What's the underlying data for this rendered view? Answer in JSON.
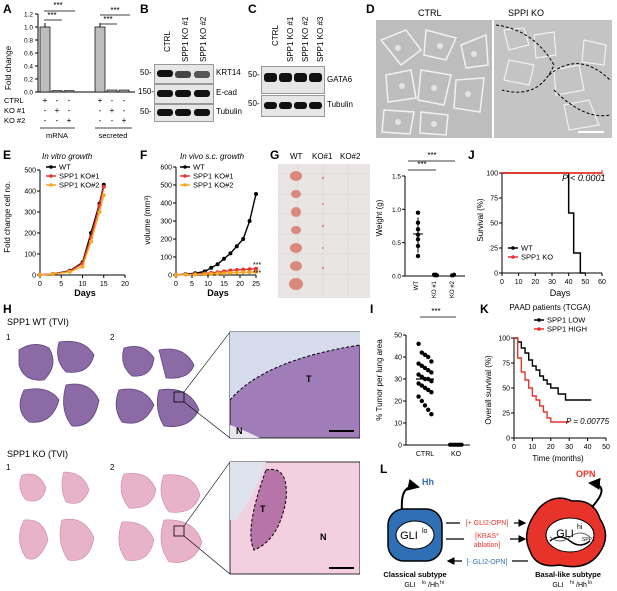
{
  "panels": {
    "A": "A",
    "B": "B",
    "C": "C",
    "D": "D",
    "E": "E",
    "F": "F",
    "G": "G",
    "J": "J",
    "H": "H",
    "I": "I",
    "K": "K",
    "L": "L"
  },
  "A": {
    "ylabel": "Fold change",
    "yticks": [
      "0.0",
      "0.2",
      "0.4",
      "0.6",
      "0.8",
      "1.0",
      "1.2"
    ],
    "rows": [
      "CTRL",
      "KO #1",
      "KO #2"
    ],
    "marks": [
      [
        "+",
        "-",
        "-",
        "+",
        "-",
        "-"
      ],
      [
        "-",
        "+",
        "-",
        "-",
        "+",
        "-"
      ],
      [
        "-",
        "-",
        "+",
        "-",
        "-",
        "+"
      ]
    ],
    "groups": [
      "mRNA",
      "secreted"
    ],
    "sig": "***",
    "bars": [
      1.0,
      0.02,
      0.02,
      1.0,
      0.03,
      0.03
    ]
  },
  "B": {
    "lanes": [
      "CTRL",
      "SPP1 KO #1",
      "SPP1 KO #2"
    ],
    "mw": [
      "50-",
      "150-",
      "50-"
    ],
    "proteins": [
      "KRT14",
      "E-cad",
      "Tubulin"
    ]
  },
  "C": {
    "lanes": [
      "CTRL",
      "SPP1 KO #1",
      "SPP1 KO #2",
      "SPP1 KO #3"
    ],
    "mw": [
      "50-",
      "50-"
    ],
    "proteins": [
      "GATA6",
      "Tubulin"
    ]
  },
  "D": {
    "left": "CTRL",
    "right": "SPPI KO"
  },
  "E": {
    "title": "In vitro growth",
    "ylabel": "Fold change cell no.",
    "xlabel": "Days",
    "legend": [
      "WT",
      "SPP1 KO#1",
      "SPP1 KO#2"
    ],
    "yticks": [
      "0",
      "100",
      "200",
      "300",
      "400",
      "500"
    ],
    "xticks": [
      "0",
      "5",
      "10",
      "15",
      "20"
    ]
  },
  "F": {
    "title": "In vivo s.c. growth",
    "ylabel": "volume (mm³)",
    "xlabel": "Days",
    "legend": [
      "WT",
      "SPP1 KO#1",
      "SPP1 KO#2"
    ],
    "yticks": [
      "0",
      "100",
      "200",
      "300",
      "400",
      "500",
      "600"
    ],
    "xticks": [
      "0",
      "5",
      "10",
      "15",
      "20",
      "25"
    ],
    "sig": "***"
  },
  "G": {
    "cols": [
      "WT",
      "KO#1",
      "KO#2"
    ],
    "ylabel": "Weight (g)",
    "yticks": [
      "0.0",
      "0.5",
      "1.0",
      "1.5"
    ],
    "xticks": [
      "WT",
      "KO #1",
      "KO #2"
    ],
    "sig": "***"
  },
  "J": {
    "ylabel": "Survival (%)",
    "xlabel": "Days",
    "pvalue": "P < 0.0001",
    "legend": [
      "WT",
      "SPP1 KO"
    ],
    "yticks": [
      "0",
      "25",
      "50",
      "75",
      "100"
    ],
    "xticks": [
      "0",
      "10",
      "20",
      "30",
      "40",
      "50",
      "60"
    ]
  },
  "H": {
    "wt_label": "SPP1 WT (TVI)",
    "ko_label": "SPP1 KO (TVI)",
    "n1": "1",
    "n2": "2",
    "t": "T",
    "n": "N"
  },
  "I": {
    "ylabel": "% Tumor per lung area",
    "yticks": [
      "0",
      "10",
      "20",
      "30",
      "40",
      "50"
    ],
    "xticks": [
      "CTRL",
      "KO"
    ],
    "sig": "***"
  },
  "K": {
    "title": "PAAD patients (TCGA)",
    "legend": [
      "SPP1 LOW",
      "SPP1 HIGH"
    ],
    "ylabel": "Overall survival (%)",
    "xlabel": "Time (months)",
    "pvalue": "P = 0.00775",
    "yticks": [
      "0",
      "25",
      "50",
      "75",
      "100"
    ],
    "xticks": [
      "0",
      "10",
      "20",
      "30",
      "40",
      "50"
    ]
  },
  "L": {
    "hh": "Hh",
    "opn": "OPN",
    "gli_lo": "GLI",
    "gli_lo_sup": "lo",
    "gli_hi": "GLI",
    "gli_hi_sup": "hi",
    "spp1": "SPP1",
    "arrow_top": "[+ GLI2-OPN]",
    "arrow_mid1": "[KRAS*",
    "arrow_mid2": "ablation]",
    "arrow_bot": "[- GLI2-OPN]",
    "classical": "Classical subtype",
    "classical_sub": "GLI",
    "basal": "Basal-like subtype",
    "basal_sub": "GLI"
  },
  "colors": {
    "red": "#e8332a",
    "orange": "#f5a623",
    "blue": "#2f6fb5",
    "black": "#000000",
    "grey": "#bdbdbd"
  }
}
